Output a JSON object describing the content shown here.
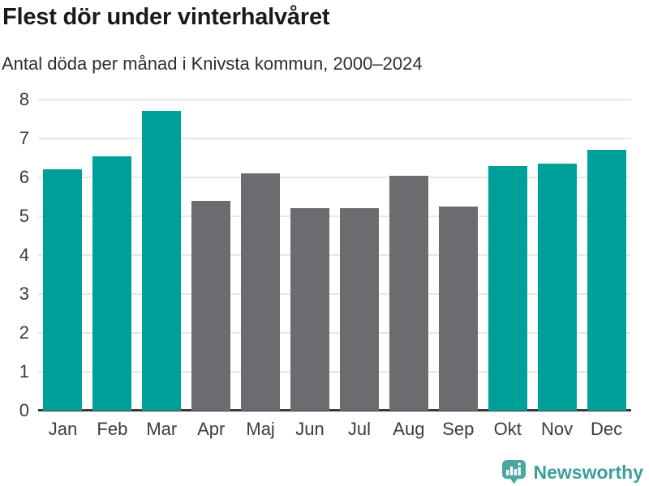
{
  "header": {
    "title": "Flest dör under vinterhalvåret",
    "subtitle": "Antal döda per månad i Knivsta kommun, 2000–2024"
  },
  "footer": {
    "brand": "Newsworthy",
    "logo_icon": "newsworthy-bar-chart-bubble-icon",
    "brand_color": "#3e9e99",
    "icon_color": "#4ba6a1"
  },
  "chart_data": {
    "type": "bar",
    "title": "Flest dör under vinterhalvåret",
    "subtitle": "Antal döda per månad i Knivsta kommun, 2000–2024",
    "categories": [
      "Jan",
      "Feb",
      "Mar",
      "Apr",
      "Maj",
      "Jun",
      "Jul",
      "Aug",
      "Sep",
      "Okt",
      "Nov",
      "Dec"
    ],
    "values": [
      6.2,
      6.55,
      7.7,
      5.4,
      6.1,
      5.2,
      5.2,
      6.05,
      5.25,
      6.3,
      6.35,
      6.7
    ],
    "ylim": [
      0,
      8
    ],
    "yticks": [
      0,
      1,
      2,
      3,
      4,
      5,
      6,
      7,
      8
    ],
    "grid": true,
    "legend": false,
    "bar_palette": {
      "highlight": "#00a09a",
      "muted": "#6e6b70"
    },
    "bar_color_keys": [
      "highlight",
      "highlight",
      "highlight",
      "muted",
      "muted",
      "muted",
      "muted",
      "muted",
      "muted",
      "highlight",
      "highlight",
      "highlight"
    ]
  }
}
